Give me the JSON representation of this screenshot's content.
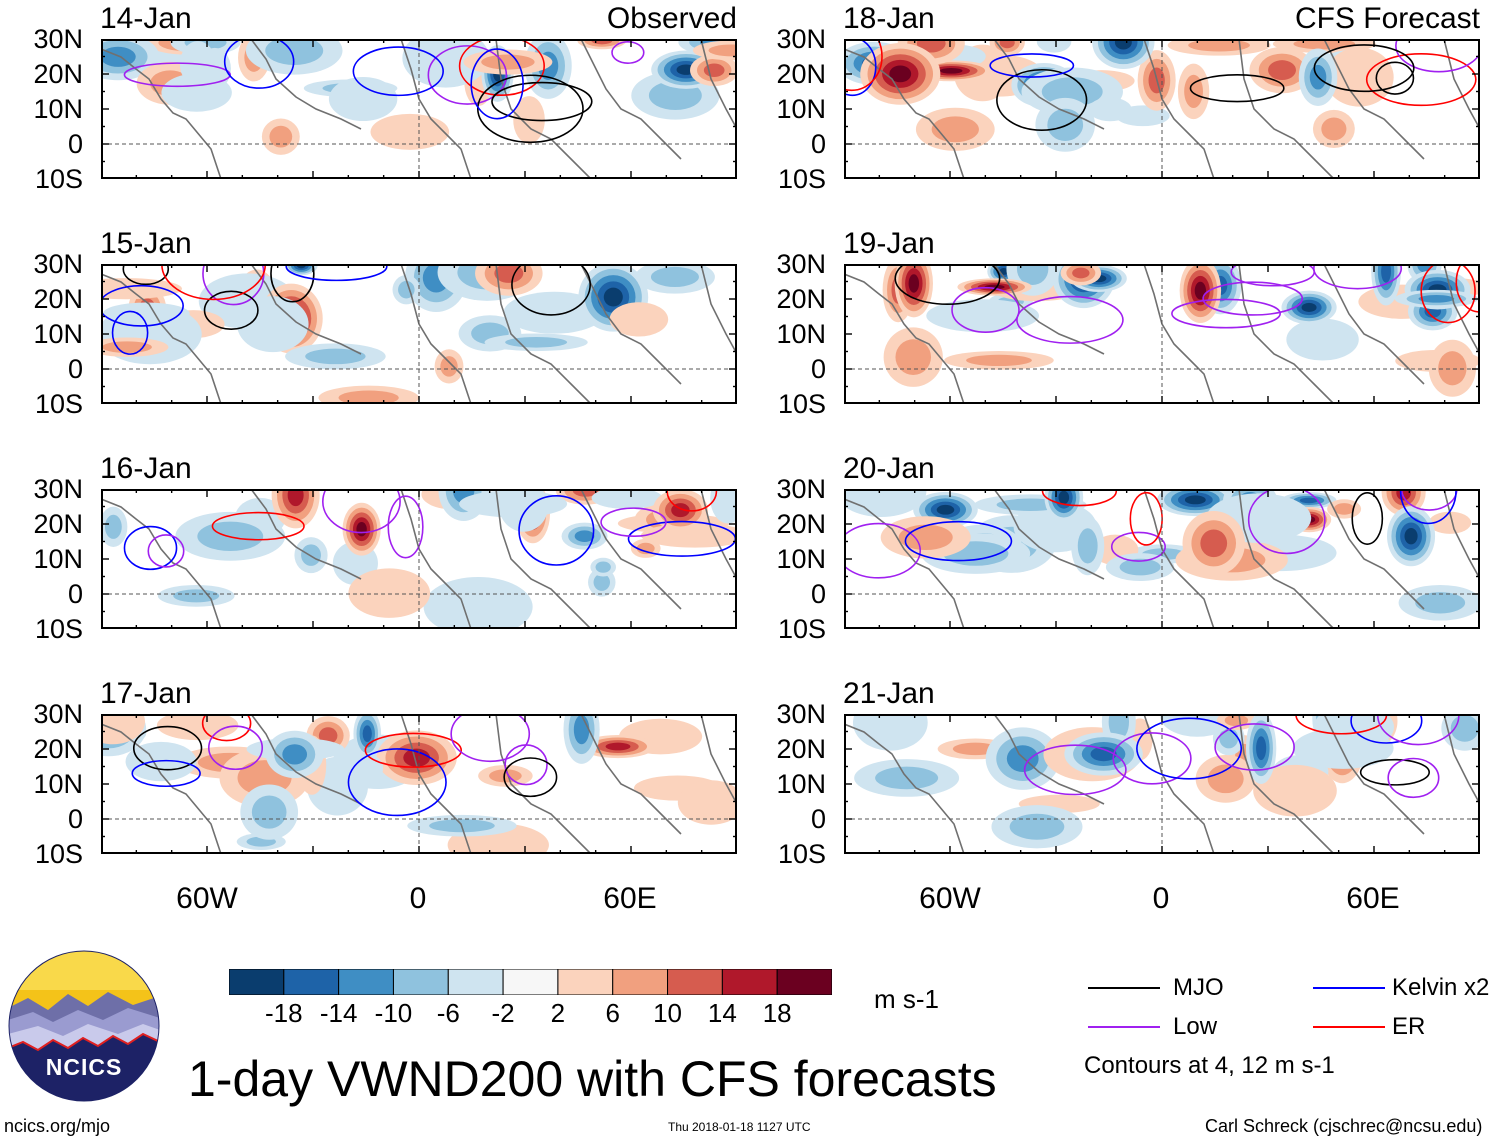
{
  "panels": [
    {
      "date": "14-Jan",
      "tag": "Observed",
      "col": 0,
      "row": 0,
      "seed": 11
    },
    {
      "date": "15-Jan",
      "tag": "",
      "col": 0,
      "row": 1,
      "seed": 23
    },
    {
      "date": "16-Jan",
      "tag": "",
      "col": 0,
      "row": 2,
      "seed": 37
    },
    {
      "date": "17-Jan",
      "tag": "",
      "col": 0,
      "row": 3,
      "seed": 41
    },
    {
      "date": "18-Jan",
      "tag": "CFS Forecast",
      "col": 1,
      "row": 0,
      "seed": 53
    },
    {
      "date": "19-Jan",
      "tag": "",
      "col": 1,
      "row": 1,
      "seed": 67
    },
    {
      "date": "20-Jan",
      "tag": "",
      "col": 1,
      "row": 2,
      "seed": 71
    },
    {
      "date": "21-Jan",
      "tag": "",
      "col": 1,
      "row": 3,
      "seed": 89
    }
  ],
  "lat_labels": [
    "30N",
    "20N",
    "10N",
    "0",
    "10S"
  ],
  "lon_labels": [
    "60W",
    "0",
    "60E"
  ],
  "colorbar": {
    "ticks": [
      "-18",
      "-14",
      "-10",
      "-6",
      "-2",
      "2",
      "6",
      "10",
      "14",
      "18"
    ],
    "units": "m s-1",
    "colors": [
      "#0a3d6e",
      "#1e63a8",
      "#3f8ec4",
      "#8fc2de",
      "#cfe4f0",
      "#f7f7f7",
      "#fbd3bd",
      "#f1a07f",
      "#d65c4f",
      "#b0182b",
      "#6b0020"
    ]
  },
  "legend": {
    "items": [
      {
        "label": "MJO",
        "color": "#000000"
      },
      {
        "label": "Kelvin x2",
        "color": "#0000ff"
      },
      {
        "label": "Low",
        "color": "#a020f0"
      },
      {
        "label": "ER",
        "color": "#ff0000"
      }
    ],
    "note": "Contours at 4, 12 m s-1"
  },
  "title": "1-day VWND200 with CFS forecasts",
  "logo_text": "NCICS",
  "footer": {
    "left": "ncics.org/mjo",
    "center": "Thu 2018-01-18 1127 UTC",
    "right": "Carl Schreck (cjschrec@ncsu.edu)"
  }
}
